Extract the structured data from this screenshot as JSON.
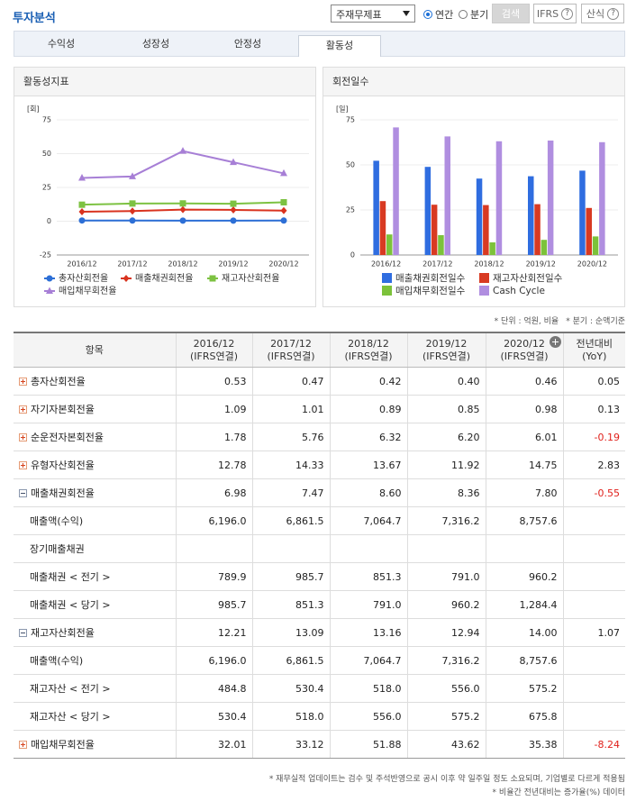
{
  "header": {
    "title": "투자분석",
    "select": "주재무제표",
    "radios": [
      {
        "label": "연간",
        "checked": true
      },
      {
        "label": "분기",
        "checked": false
      }
    ],
    "buttons": [
      {
        "label": "검색"
      },
      {
        "label": "IFRS",
        "help": "?"
      },
      {
        "label": "산식",
        "help": "?"
      }
    ]
  },
  "tabs": {
    "items": [
      "수익성",
      "성장성",
      "안정성",
      "활동성"
    ],
    "active": 3
  },
  "chart_data": [
    {
      "type": "line",
      "title": "활동성지표",
      "y_label": "[회]",
      "categories": [
        "2016/12",
        "2017/12",
        "2018/12",
        "2019/12",
        "2020/12"
      ],
      "ylim": [
        -25,
        75
      ],
      "yticks": [
        -25,
        0,
        25,
        50,
        75
      ],
      "grid": true,
      "series": [
        {
          "name": "총자산회전율",
          "color": "#2d6fd6",
          "marker": "circle",
          "values": [
            0.53,
            0.47,
            0.42,
            0.4,
            0.46
          ]
        },
        {
          "name": "매출채권회전율",
          "color": "#d9331f",
          "marker": "diamond",
          "values": [
            6.98,
            7.47,
            8.6,
            8.36,
            7.8
          ]
        },
        {
          "name": "재고자산회전율",
          "color": "#7dc242",
          "marker": "square",
          "values": [
            12.21,
            13.09,
            13.16,
            12.94,
            14.0
          ]
        },
        {
          "name": "매입채무회전율",
          "color": "#a77fd6",
          "marker": "triangle",
          "values": [
            32.01,
            33.12,
            51.88,
            43.62,
            35.38
          ]
        }
      ]
    },
    {
      "type": "bar",
      "title": "회전일수",
      "y_label": "[일]",
      "categories": [
        "2016/12",
        "2017/12",
        "2018/12",
        "2019/12",
        "2020/12"
      ],
      "ylim": [
        0,
        75
      ],
      "yticks": [
        0,
        25,
        50,
        75
      ],
      "grid": true,
      "series": [
        {
          "name": "매출채권회전일수",
          "color": "#2f6de0",
          "values": [
            52.3,
            48.9,
            42.4,
            43.7,
            46.8
          ]
        },
        {
          "name": "재고자산회전일수",
          "color": "#d83a22",
          "values": [
            29.9,
            27.9,
            27.7,
            28.2,
            26.1
          ]
        },
        {
          "name": "매입채무회전일수",
          "color": "#7cc23a",
          "values": [
            11.4,
            11.0,
            7.0,
            8.4,
            10.3
          ]
        },
        {
          "name": "Cash Cycle",
          "color": "#b08ee0",
          "values": [
            70.8,
            65.8,
            63.1,
            63.5,
            62.6
          ]
        }
      ]
    }
  ],
  "notes": [
    "* 단위 : 억원, 비율",
    "* 분기 : 순액기준"
  ],
  "table": {
    "columns": [
      {
        "label": "항목"
      },
      {
        "label": "2016/12",
        "sub": "(IFRS연결)"
      },
      {
        "label": "2017/12",
        "sub": "(IFRS연결)"
      },
      {
        "label": "2018/12",
        "sub": "(IFRS연결)"
      },
      {
        "label": "2019/12",
        "sub": "(IFRS연결)"
      },
      {
        "label": "2020/12",
        "sub": "(IFRS연결)",
        "expand_icon": true
      },
      {
        "label": "전년대비",
        "sub": "(YoY)"
      }
    ],
    "rows": [
      {
        "label": "총자산회전율",
        "toggle": "plus",
        "cells": [
          "0.53",
          "0.47",
          "0.42",
          "0.40",
          "0.46",
          "0.05"
        ]
      },
      {
        "label": "자기자본회전율",
        "toggle": "plus",
        "cells": [
          "1.09",
          "1.01",
          "0.89",
          "0.85",
          "0.98",
          "0.13"
        ]
      },
      {
        "label": "순운전자본회전율",
        "toggle": "plus",
        "cells": [
          "1.78",
          "5.76",
          "6.32",
          "6.20",
          "6.01",
          "-0.19"
        ]
      },
      {
        "label": "유형자산회전율",
        "toggle": "plus",
        "cells": [
          "12.78",
          "14.33",
          "13.67",
          "11.92",
          "14.75",
          "2.83"
        ]
      },
      {
        "label": "매출채권회전율",
        "toggle": "minus",
        "cells": [
          "6.98",
          "7.47",
          "8.60",
          "8.36",
          "7.80",
          "-0.55"
        ]
      },
      {
        "label": "매출액(수익)",
        "cells": [
          "6,196.0",
          "6,861.5",
          "7,064.7",
          "7,316.2",
          "8,757.6",
          null
        ]
      },
      {
        "label": "장기매출채권",
        "cells": [
          null,
          null,
          null,
          null,
          null,
          null
        ]
      },
      {
        "label": "매출채권 < 전기 >",
        "cells": [
          "789.9",
          "985.7",
          "851.3",
          "791.0",
          "960.2",
          null
        ]
      },
      {
        "label": "매출채권 < 당기 >",
        "cells": [
          "985.7",
          "851.3",
          "791.0",
          "960.2",
          "1,284.4",
          null
        ]
      },
      {
        "label": "재고자산회전율",
        "toggle": "minus",
        "cells": [
          "12.21",
          "13.09",
          "13.16",
          "12.94",
          "14.00",
          "1.07"
        ]
      },
      {
        "label": "매출액(수익)",
        "cells": [
          "6,196.0",
          "6,861.5",
          "7,064.7",
          "7,316.2",
          "8,757.6",
          null
        ]
      },
      {
        "label": "재고자산 < 전기 >",
        "cells": [
          "484.8",
          "530.4",
          "518.0",
          "556.0",
          "575.2",
          null
        ]
      },
      {
        "label": "재고자산 < 당기 >",
        "cells": [
          "530.4",
          "518.0",
          "556.0",
          "575.2",
          "675.8",
          null
        ]
      },
      {
        "label": "매입채무회전율",
        "toggle": "plus",
        "cells": [
          "32.01",
          "33.12",
          "51.88",
          "43.62",
          "35.38",
          "-8.24"
        ]
      }
    ]
  },
  "footnotes": [
    "* 재무실적 업데이트는 검수 및 주석반영으로 공시 이후 약 일주일 정도 소요되며, 기업별로 다르게 적용됨",
    "* 비율간 전년대비는 증가율(%) 데이터"
  ]
}
